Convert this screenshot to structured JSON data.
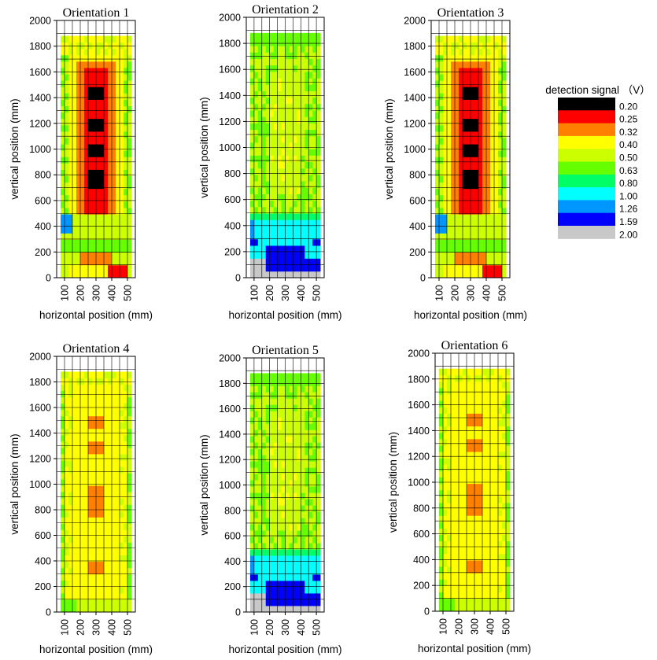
{
  "chart_data": [
    {
      "type": "heatmap",
      "title": "Orientation 1",
      "xlabel": "horizontal position (mm)",
      "ylabel": "vertical position (mm)",
      "xlim": [
        50,
        550
      ],
      "ylim": [
        0,
        2000
      ],
      "xticks": [
        100,
        200,
        300,
        400,
        500
      ],
      "yticks": [
        0,
        200,
        400,
        600,
        800,
        1000,
        1200,
        1400,
        1600,
        1800,
        2000
      ],
      "grid": true,
      "pattern": "strong"
    },
    {
      "type": "heatmap",
      "title": "Orientation 2",
      "xlabel": "horizontal position (mm)",
      "ylabel": "vertical position (mm)",
      "xlim": [
        50,
        550
      ],
      "ylim": [
        0,
        2000
      ],
      "xticks": [
        100,
        200,
        300,
        400,
        500
      ],
      "yticks": [
        0,
        200,
        400,
        600,
        800,
        1000,
        1200,
        1400,
        1600,
        1800,
        2000
      ],
      "grid": true,
      "pattern": "weak"
    },
    {
      "type": "heatmap",
      "title": "Orientation 3",
      "xlabel": "horizontal position (mm)",
      "ylabel": "vertical position (mm)",
      "xlim": [
        50,
        550
      ],
      "ylim": [
        0,
        2000
      ],
      "xticks": [
        100,
        200,
        300,
        400,
        500
      ],
      "yticks": [
        0,
        200,
        400,
        600,
        800,
        1000,
        1200,
        1400,
        1600,
        1800,
        2000
      ],
      "grid": true,
      "pattern": "strong"
    },
    {
      "type": "heatmap",
      "title": "Orientation 4",
      "xlabel": "horizontal position (mm)",
      "ylabel": "vertical position (mm)",
      "xlim": [
        50,
        550
      ],
      "ylim": [
        0,
        2000
      ],
      "xticks": [
        100,
        200,
        300,
        400,
        500
      ],
      "yticks": [
        0,
        200,
        400,
        600,
        800,
        1000,
        1200,
        1400,
        1600,
        1800,
        2000
      ],
      "grid": true,
      "pattern": "moderate"
    },
    {
      "type": "heatmap",
      "title": "Orientation 5",
      "xlabel": "horizontal position (mm)",
      "ylabel": "vertical position (mm)",
      "xlim": [
        50,
        550
      ],
      "ylim": [
        0,
        2000
      ],
      "xticks": [
        100,
        200,
        300,
        400,
        500
      ],
      "yticks": [
        0,
        200,
        400,
        600,
        800,
        1000,
        1200,
        1400,
        1600,
        1800,
        2000
      ],
      "grid": true,
      "pattern": "weak"
    },
    {
      "type": "heatmap",
      "title": "Orientation 6",
      "xlabel": "horizontal position (mm)",
      "ylabel": "vertical position (mm)",
      "xlim": [
        50,
        550
      ],
      "ylim": [
        0,
        2000
      ],
      "xticks": [
        100,
        200,
        300,
        400,
        500
      ],
      "yticks": [
        0,
        200,
        400,
        600,
        800,
        1000,
        1200,
        1400,
        1600,
        1800,
        2000
      ],
      "grid": true,
      "pattern": "moderate"
    }
  ],
  "colorbar": {
    "title": "detection signal （V）",
    "levels": [
      "0.20",
      "0.25",
      "0.32",
      "0.40",
      "0.50",
      "0.63",
      "0.80",
      "1.00",
      "1.26",
      "1.59",
      "2.00"
    ],
    "colors": [
      "#000000",
      "#ff0000",
      "#ff8000",
      "#ffff00",
      "#ccff00",
      "#66ff00",
      "#00ff66",
      "#00ffff",
      "#0096ff",
      "#0000ff",
      "#c8c8c8"
    ]
  }
}
